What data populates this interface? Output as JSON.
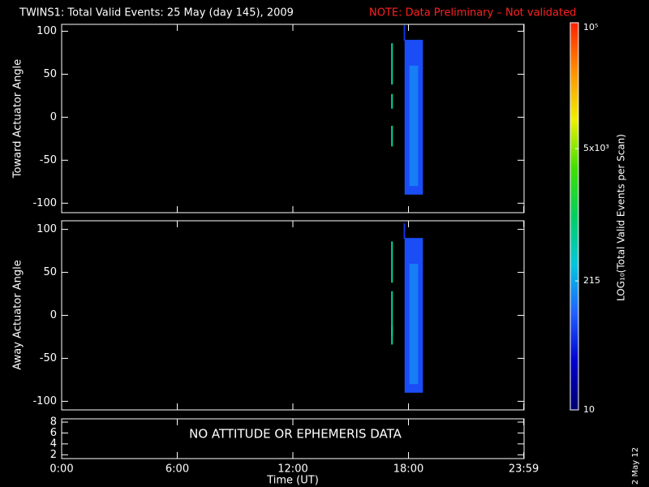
{
  "chart_data": [
    {
      "type": "heatmap",
      "title": "TWINS1: Total Valid Events: 25 May (day 145), 2009",
      "annotation": "NOTE: Data Preliminary – Not validated",
      "annotation_color": "#ff2020",
      "ylabel": "Toward Actuator Angle",
      "ylim": [
        -111,
        108
      ],
      "yticks": [
        -100,
        -50,
        0,
        50,
        100
      ],
      "cells": [
        {
          "x": [
            17.1,
            17.19
          ],
          "y": [
            38,
            86
          ],
          "value": 600
        },
        {
          "x": [
            17.1,
            17.19
          ],
          "y": [
            10,
            27
          ],
          "value": 600
        },
        {
          "x": [
            17.1,
            17.19
          ],
          "y": [
            -34,
            -10
          ],
          "value": 600
        },
        {
          "x": [
            17.75,
            17.83
          ],
          "y": [
            89,
            107
          ],
          "value": 60
        },
        {
          "x": [
            17.8,
            18.75
          ],
          "y": [
            -90,
            90
          ],
          "value": 80
        },
        {
          "x": [
            18.05,
            18.5
          ],
          "y": [
            -80,
            60
          ],
          "value": 140
        }
      ]
    },
    {
      "type": "heatmap",
      "ylabel": "Away Actuator Angle",
      "ylim": [
        -110,
        110
      ],
      "yticks": [
        -100,
        -50,
        0,
        50,
        100
      ],
      "cells": [
        {
          "x": [
            17.1,
            17.19
          ],
          "y": [
            38,
            86
          ],
          "value": 600
        },
        {
          "x": [
            17.1,
            17.19
          ],
          "y": [
            -23,
            28
          ],
          "value": 600
        },
        {
          "x": [
            17.1,
            17.19
          ],
          "y": [
            -34,
            -13
          ],
          "value": 600
        },
        {
          "x": [
            17.75,
            17.83
          ],
          "y": [
            89,
            107
          ],
          "value": 60
        },
        {
          "x": [
            17.8,
            18.75
          ],
          "y": [
            -90,
            90
          ],
          "value": 80
        },
        {
          "x": [
            18.05,
            18.5
          ],
          "y": [
            -80,
            60
          ],
          "value": 140
        }
      ]
    },
    {
      "type": "empty",
      "annotation": "NO ATTITUDE OR EPHEMERIS DATA",
      "ylim": [
        1.3,
        8.6
      ],
      "yticks": [
        2,
        4,
        6,
        8
      ],
      "xlabel": "Time (UT)",
      "xlim": [
        0,
        24
      ],
      "xticks": [
        {
          "value": 0,
          "label": "0:00"
        },
        {
          "value": 6,
          "label": "6:00"
        },
        {
          "value": 12,
          "label": "12:00"
        },
        {
          "value": 18,
          "label": "18:00"
        },
        {
          "value": 23.983,
          "label": "23:59"
        }
      ]
    }
  ],
  "colorbar": {
    "label": "LOG₁₀(Total Valid Events per Scan)",
    "log": true,
    "lim": [
      10,
      100000
    ],
    "ticks": [
      10,
      215,
      {
        "value": 5000,
        "label": "5x10³"
      },
      {
        "value": 100000,
        "label": "10⁵"
      }
    ],
    "colormap": [
      "#000070",
      "#0000d0",
      "#2060ff",
      "#00c8e0",
      "#00d060",
      "#40e000",
      "#f0f000",
      "#ff9000",
      "#ff2000"
    ]
  },
  "date_stamp": "2 May 12"
}
